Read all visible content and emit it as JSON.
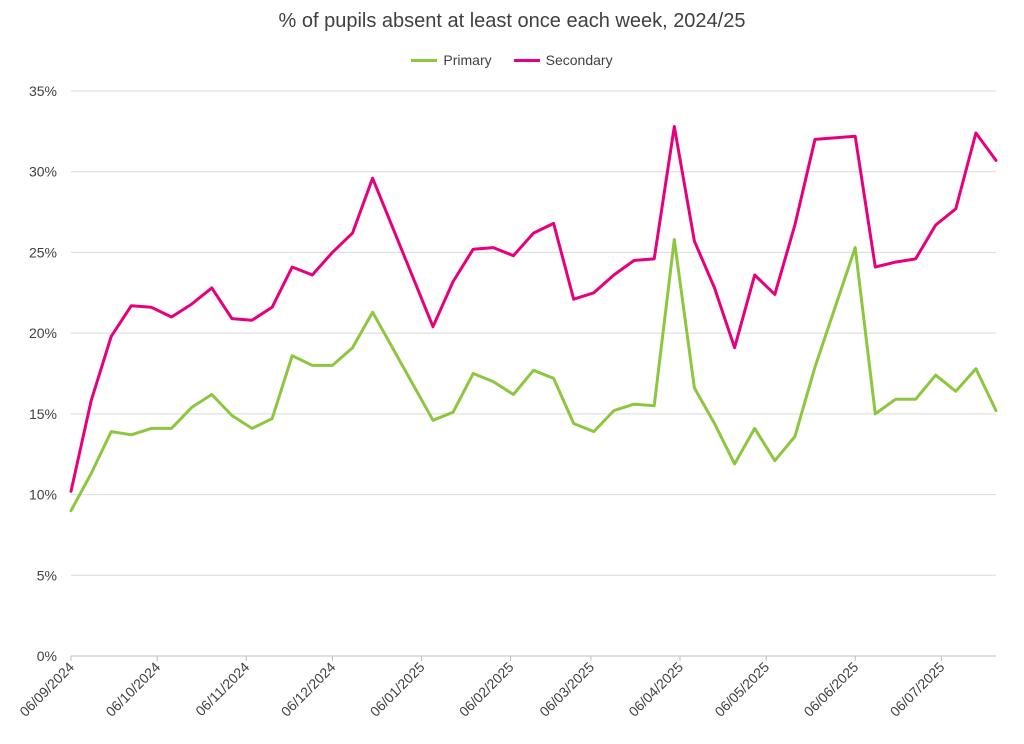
{
  "chart_data": {
    "type": "line",
    "title": "% of pupils absent at least once each week, 2024/25",
    "xlabel": "",
    "ylabel": "",
    "ylim": [
      0,
      35
    ],
    "y_ticks": [
      "0%",
      "5%",
      "10%",
      "15%",
      "20%",
      "25%",
      "30%",
      "35%"
    ],
    "grid": "horizontal",
    "legend_position": "top-center",
    "x_tick_labels": [
      "06/09/2024",
      "06/10/2024",
      "06/11/2024",
      "06/12/2024",
      "06/01/2025",
      "06/02/2025",
      "06/03/2025",
      "06/04/2025",
      "06/05/2025",
      "06/06/2025",
      "06/07/2025"
    ],
    "x_range": [
      "2024-09-06",
      "2025-07-25"
    ],
    "series": [
      {
        "name": "Primary",
        "color": "#8dc63f",
        "points": [
          [
            "2024-09-06",
            9.0
          ],
          [
            "2024-09-13",
            11.3
          ],
          [
            "2024-09-20",
            13.9
          ],
          [
            "2024-09-27",
            13.7
          ],
          [
            "2024-10-04",
            14.1
          ],
          [
            "2024-10-11",
            14.1
          ],
          [
            "2024-10-18",
            15.4
          ],
          [
            "2024-10-25",
            16.2
          ],
          [
            "2024-11-01",
            14.9
          ],
          [
            "2024-11-08",
            14.1
          ],
          [
            "2024-11-15",
            14.7
          ],
          [
            "2024-11-22",
            18.6
          ],
          [
            "2024-11-29",
            18.0
          ],
          [
            "2024-12-06",
            18.0
          ],
          [
            "2024-12-13",
            19.1
          ],
          [
            "2024-12-20",
            21.3
          ],
          [
            "2025-01-10",
            14.6
          ],
          [
            "2025-01-17",
            15.1
          ],
          [
            "2025-01-24",
            17.5
          ],
          [
            "2025-01-31",
            17.0
          ],
          [
            "2025-02-07",
            16.2
          ],
          [
            "2025-02-14",
            17.7
          ],
          [
            "2025-02-21",
            17.2
          ],
          [
            "2025-02-28",
            14.4
          ],
          [
            "2025-03-07",
            13.9
          ],
          [
            "2025-03-14",
            15.2
          ],
          [
            "2025-03-21",
            15.6
          ],
          [
            "2025-03-28",
            15.5
          ],
          [
            "2025-04-04",
            25.8
          ],
          [
            "2025-04-11",
            16.6
          ],
          [
            "2025-04-18",
            14.4
          ],
          [
            "2025-04-25",
            11.9
          ],
          [
            "2025-05-02",
            14.1
          ],
          [
            "2025-05-09",
            12.1
          ],
          [
            "2025-05-16",
            13.6
          ],
          [
            "2025-05-23",
            17.9
          ],
          [
            "2025-06-06",
            25.3
          ],
          [
            "2025-06-13",
            15.0
          ],
          [
            "2025-06-20",
            15.9
          ],
          [
            "2025-06-27",
            15.9
          ],
          [
            "2025-07-04",
            17.4
          ],
          [
            "2025-07-11",
            16.4
          ],
          [
            "2025-07-18",
            17.8
          ],
          [
            "2025-07-25",
            15.2
          ]
        ]
      },
      {
        "name": "Secondary",
        "color": "#e6007e",
        "points": [
          [
            "2024-09-06",
            10.2
          ],
          [
            "2024-09-13",
            15.8
          ],
          [
            "2024-09-20",
            19.8
          ],
          [
            "2024-09-27",
            21.7
          ],
          [
            "2024-10-04",
            21.6
          ],
          [
            "2024-10-11",
            21.0
          ],
          [
            "2024-10-18",
            21.8
          ],
          [
            "2024-10-25",
            22.8
          ],
          [
            "2024-11-01",
            20.9
          ],
          [
            "2024-11-08",
            20.8
          ],
          [
            "2024-11-15",
            21.6
          ],
          [
            "2024-11-22",
            24.1
          ],
          [
            "2024-11-29",
            23.6
          ],
          [
            "2024-12-06",
            25.0
          ],
          [
            "2024-12-13",
            26.2
          ],
          [
            "2024-12-20",
            29.6
          ],
          [
            "2025-01-10",
            20.4
          ],
          [
            "2025-01-17",
            23.2
          ],
          [
            "2025-01-24",
            25.2
          ],
          [
            "2025-01-31",
            25.3
          ],
          [
            "2025-02-07",
            24.8
          ],
          [
            "2025-02-14",
            26.2
          ],
          [
            "2025-02-21",
            26.8
          ],
          [
            "2025-02-28",
            22.1
          ],
          [
            "2025-03-07",
            22.5
          ],
          [
            "2025-03-14",
            23.6
          ],
          [
            "2025-03-21",
            24.5
          ],
          [
            "2025-03-28",
            24.6
          ],
          [
            "2025-04-04",
            32.8
          ],
          [
            "2025-04-11",
            25.7
          ],
          [
            "2025-04-18",
            22.8
          ],
          [
            "2025-04-25",
            19.1
          ],
          [
            "2025-05-02",
            23.6
          ],
          [
            "2025-05-09",
            22.4
          ],
          [
            "2025-05-16",
            26.7
          ],
          [
            "2025-05-23",
            32.0
          ],
          [
            "2025-06-06",
            32.2
          ],
          [
            "2025-06-13",
            24.1
          ],
          [
            "2025-06-20",
            24.4
          ],
          [
            "2025-06-27",
            24.6
          ],
          [
            "2025-07-04",
            26.7
          ],
          [
            "2025-07-11",
            27.7
          ],
          [
            "2025-07-18",
            32.4
          ],
          [
            "2025-07-25",
            30.7
          ]
        ]
      }
    ]
  }
}
